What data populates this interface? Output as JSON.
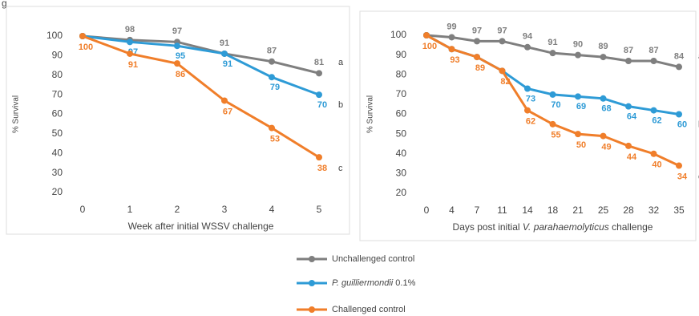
{
  "corner_label": "g",
  "chart_data": [
    {
      "type": "line",
      "categories": [
        "0",
        "1",
        "2",
        "3",
        "4",
        "5"
      ],
      "ylabel": "% Survival",
      "xlabel": [
        {
          "text": "Week after initial WSSV challenge"
        }
      ],
      "ylim": [
        20,
        100
      ],
      "yticks": [
        20,
        30,
        40,
        50,
        60,
        70,
        80,
        90,
        100
      ],
      "series": [
        {
          "color": "#7f7f7f",
          "values": [
            100,
            98,
            97,
            91,
            87,
            81
          ],
          "value_labels": [
            null,
            "98",
            "97",
            "91",
            "87",
            "81"
          ],
          "end_label": "a"
        },
        {
          "color": "#2e9bd6",
          "values": [
            100,
            97,
            95,
            91,
            79,
            70
          ],
          "value_labels": [
            null,
            "97",
            "95",
            "91",
            "79",
            "70"
          ],
          "end_label": "b"
        },
        {
          "color": "#f07e2a",
          "values": [
            100,
            91,
            86,
            67,
            53,
            38
          ],
          "value_labels": [
            "100",
            "91",
            "86",
            "67",
            "53",
            "38"
          ],
          "end_label": "c"
        }
      ]
    },
    {
      "type": "line",
      "categories": [
        "0",
        "4",
        "7",
        "11",
        "14",
        "18",
        "21",
        "25",
        "28",
        "32",
        "35"
      ],
      "ylabel": "% Survival",
      "xlabel": [
        {
          "text": "Days post initial "
        },
        {
          "text": "V. parahaemolyticus",
          "italic": true
        },
        {
          "text": " challenge"
        }
      ],
      "ylim": [
        20,
        100
      ],
      "yticks": [
        20,
        30,
        40,
        50,
        60,
        70,
        80,
        90,
        100
      ],
      "series": [
        {
          "color": "#7f7f7f",
          "values": [
            100,
            99,
            97,
            97,
            94,
            91,
            90,
            89,
            87,
            87,
            84
          ],
          "value_labels": [
            null,
            "99",
            "97",
            "97",
            "94",
            "91",
            "90",
            "89",
            "87",
            "87",
            "84"
          ],
          "end_label": "a"
        },
        {
          "color": "#2e9bd6",
          "values": [
            100,
            93,
            89,
            82,
            73,
            70,
            69,
            68,
            64,
            62,
            60
          ],
          "value_labels": [
            null,
            null,
            null,
            null,
            "73",
            "70",
            "69",
            "68",
            "64",
            "62",
            "60"
          ],
          "end_label": "b"
        },
        {
          "color": "#f07e2a",
          "values": [
            100,
            93,
            89,
            82,
            62,
            55,
            50,
            49,
            44,
            40,
            34
          ],
          "value_labels": [
            "100",
            "93",
            "89",
            "82",
            "62",
            "55",
            "50",
            "49",
            "44",
            "40",
            "34"
          ],
          "end_label": "c"
        }
      ]
    }
  ],
  "legend": [
    {
      "color": "#7f7f7f",
      "parts": [
        {
          "text": "Unchallenged control"
        }
      ]
    },
    {
      "color": "#2e9bd6",
      "parts": [
        {
          "text": "P. guilliermondii",
          "italic": true
        },
        {
          "text": " 0.1%"
        }
      ]
    },
    {
      "color": "#f07e2a",
      "parts": [
        {
          "text": "Challenged control"
        }
      ]
    }
  ]
}
